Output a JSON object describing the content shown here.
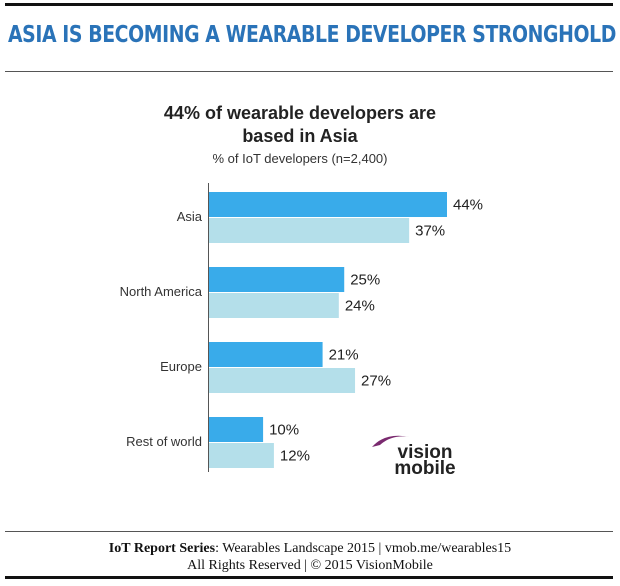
{
  "header": {
    "title": "ASIA IS BECOMING A WEARABLE DEVELOPER STRONGHOLD"
  },
  "chart_data": {
    "type": "barh",
    "title": "44% of wearable developers are based in Asia",
    "subtitle": "% of IoT developers (n=2,400)",
    "categories": [
      "Asia",
      "North America",
      "Europe",
      "Rest of world"
    ],
    "series": [
      {
        "color": "#39abea",
        "values": [
          44,
          25,
          21,
          10
        ],
        "value_labels": [
          "44%",
          "25%",
          "21%",
          "10%"
        ]
      },
      {
        "color": "#b4dfea",
        "values": [
          37,
          24,
          27,
          12
        ],
        "value_labels": [
          "37%",
          "24%",
          "27%",
          "12%"
        ]
      }
    ]
  },
  "logo": {
    "top": "vision",
    "bottom": "mobile"
  },
  "footer": {
    "series_label": "IoT Report Series",
    "line1_rest": ": Wearables Landscape 2015 | vmob.me/wearables15",
    "line2": "All Rights Reserved | © 2015 VisionMobile"
  }
}
